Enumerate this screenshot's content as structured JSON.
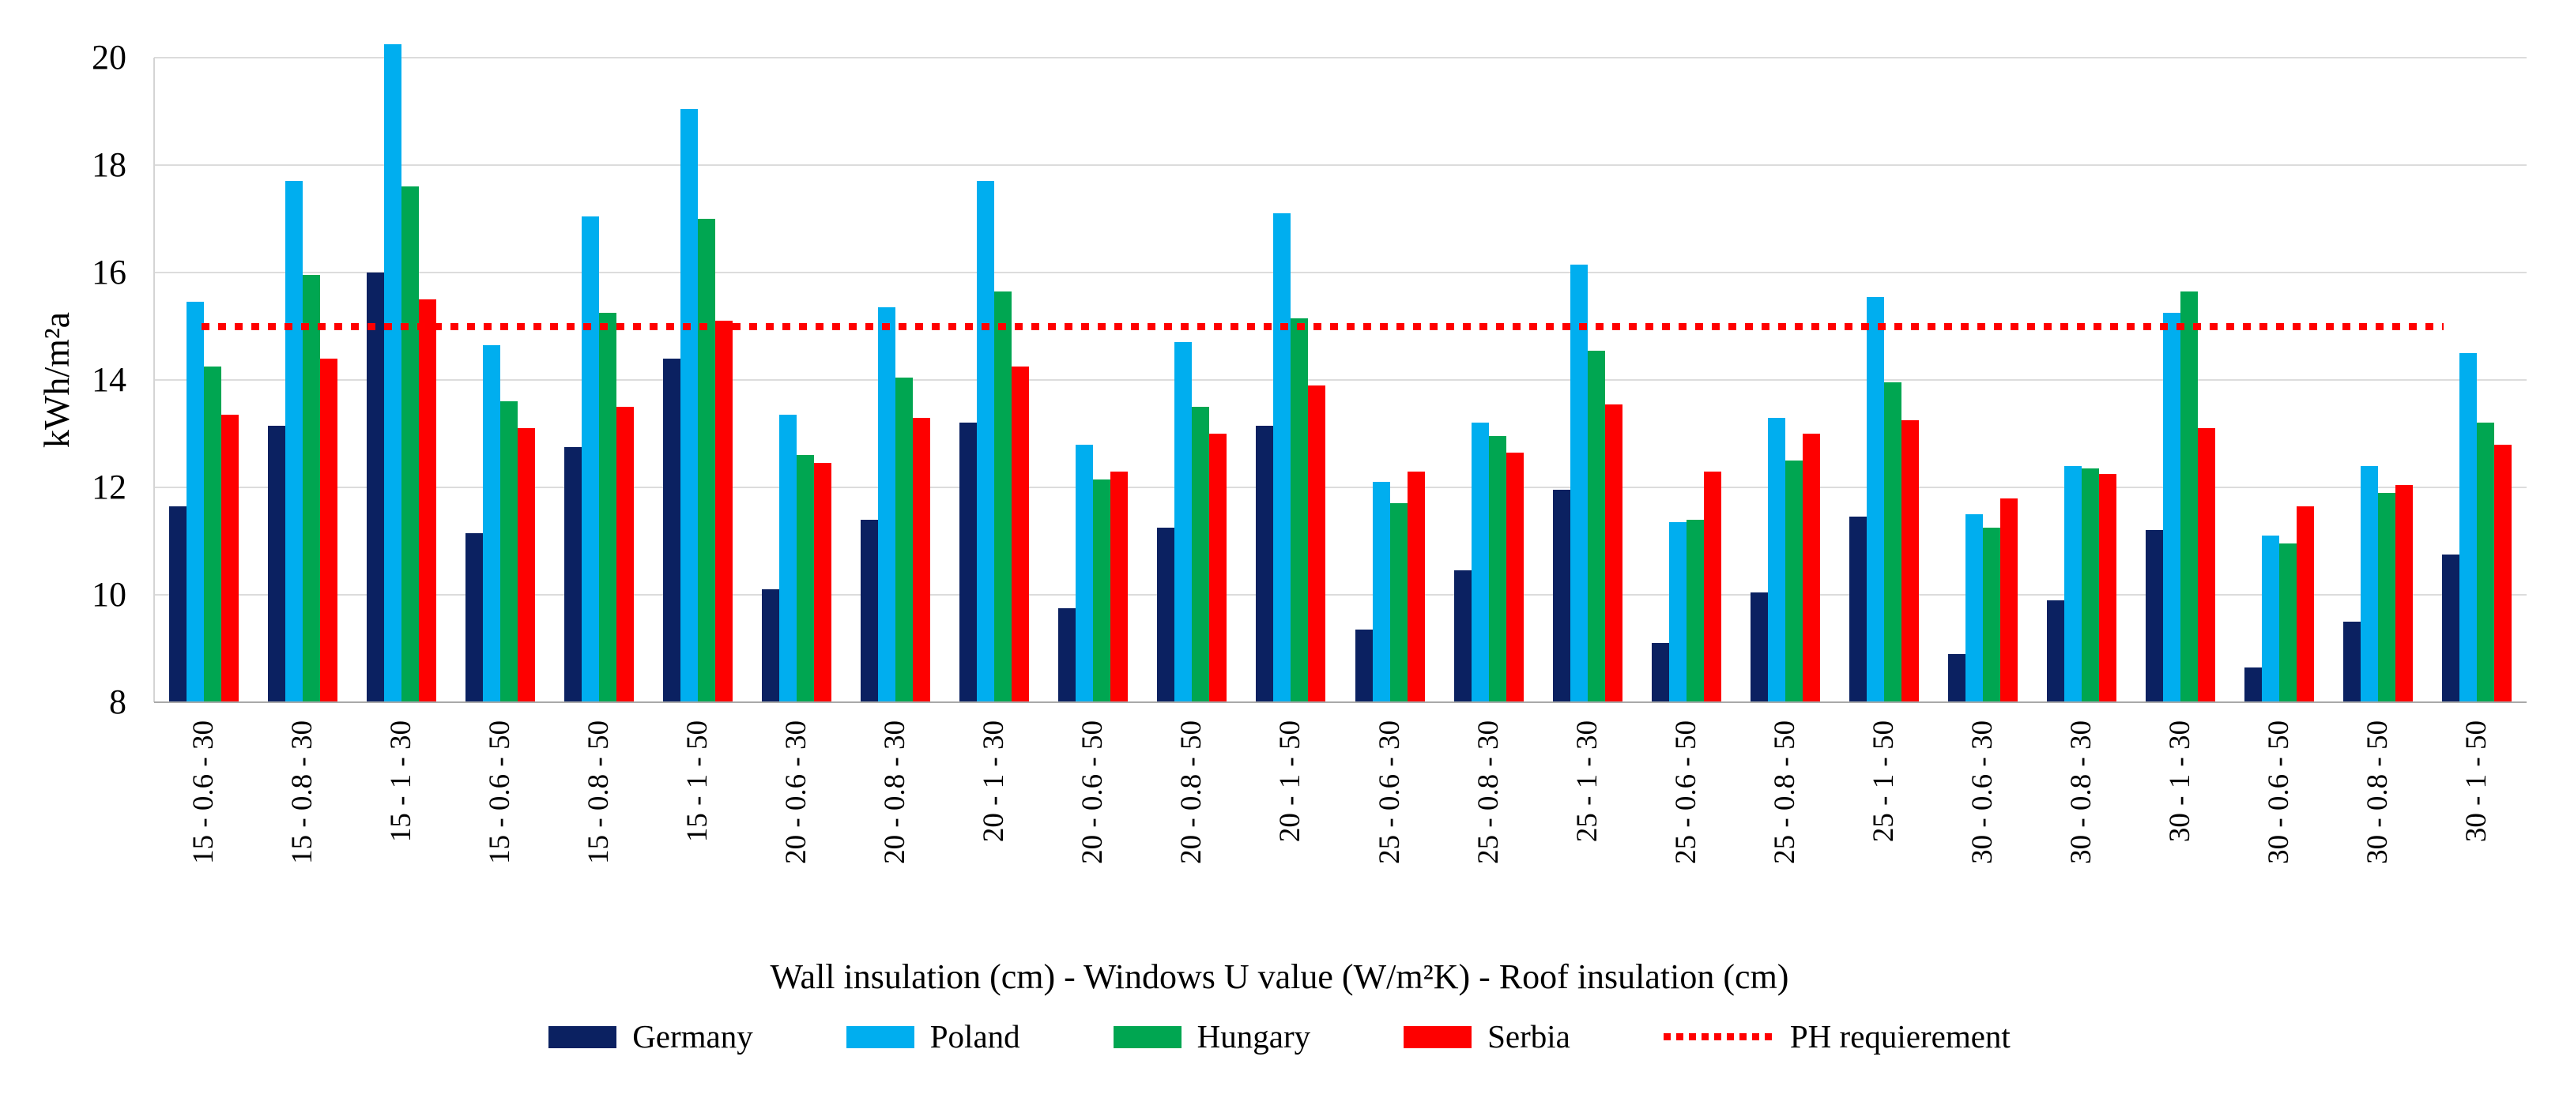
{
  "chart_data": {
    "type": "bar",
    "title": "",
    "ylabel": "kWh/m²a",
    "xlabel": "Wall insulation (cm) - Windows U value (W/m²K) - Roof insulation (cm)",
    "ylim": [
      8,
      20
    ],
    "yticks": [
      8,
      10,
      12,
      14,
      16,
      18,
      20
    ],
    "grid": "horizontal",
    "legend_position": "bottom",
    "categories": [
      "15 - 0.6 - 30",
      "15 - 0.8 - 30",
      "15 - 1 - 30",
      "15 - 0.6 - 50",
      "15 - 0.8 - 50",
      "15 - 1 - 50",
      "20 - 0.6 - 30",
      "20 - 0.8 - 30",
      "20 - 1 - 30",
      "20 - 0.6 - 50",
      "20 - 0.8 - 50",
      "20 - 1 - 50",
      "25 - 0.6 - 30",
      "25 - 0.8 - 30",
      "25 - 1 - 30",
      "25 - 0.6 - 50",
      "25 - 0.8 - 50",
      "25 - 1 - 50",
      "30 - 0.6 - 30",
      "30 - 0.8 - 30",
      "30 - 1 - 30",
      "30 - 0.6 - 50",
      "30 - 0.8 - 50",
      "30 - 1 - 50"
    ],
    "series": [
      {
        "name": "Germany",
        "color": "#0B2161",
        "values": [
          11.65,
          13.15,
          16.0,
          11.15,
          12.75,
          14.4,
          10.1,
          11.4,
          13.2,
          9.75,
          11.25,
          13.15,
          9.35,
          10.45,
          11.95,
          9.1,
          10.05,
          11.45,
          8.9,
          9.9,
          11.2,
          8.65,
          9.5,
          10.75
        ]
      },
      {
        "name": "Poland",
        "color": "#00AEEF",
        "values": [
          15.45,
          17.7,
          20.25,
          14.65,
          17.05,
          19.05,
          13.35,
          15.35,
          17.7,
          12.8,
          14.7,
          17.1,
          12.1,
          13.2,
          16.15,
          11.35,
          13.3,
          15.55,
          11.5,
          12.4,
          15.25,
          11.1,
          12.4,
          14.5
        ]
      },
      {
        "name": "Hungary",
        "color": "#00A651",
        "values": [
          14.25,
          15.95,
          17.6,
          13.6,
          15.25,
          17.0,
          12.6,
          14.05,
          15.65,
          12.15,
          13.5,
          15.15,
          11.7,
          12.95,
          14.55,
          11.4,
          12.5,
          13.95,
          11.25,
          12.35,
          15.65,
          10.95,
          11.9,
          13.2
        ]
      },
      {
        "name": "Serbia",
        "color": "#FE0000",
        "values": [
          13.35,
          14.4,
          15.5,
          13.1,
          13.5,
          15.1,
          12.45,
          13.3,
          14.25,
          12.3,
          13.0,
          13.9,
          12.3,
          12.65,
          13.55,
          12.3,
          13.0,
          13.25,
          11.8,
          12.25,
          13.1,
          11.65,
          12.05,
          12.8
        ]
      }
    ],
    "reference_line": {
      "label": "PH requierement",
      "value": 15,
      "color": "#FF0000",
      "style": "dotted"
    }
  }
}
